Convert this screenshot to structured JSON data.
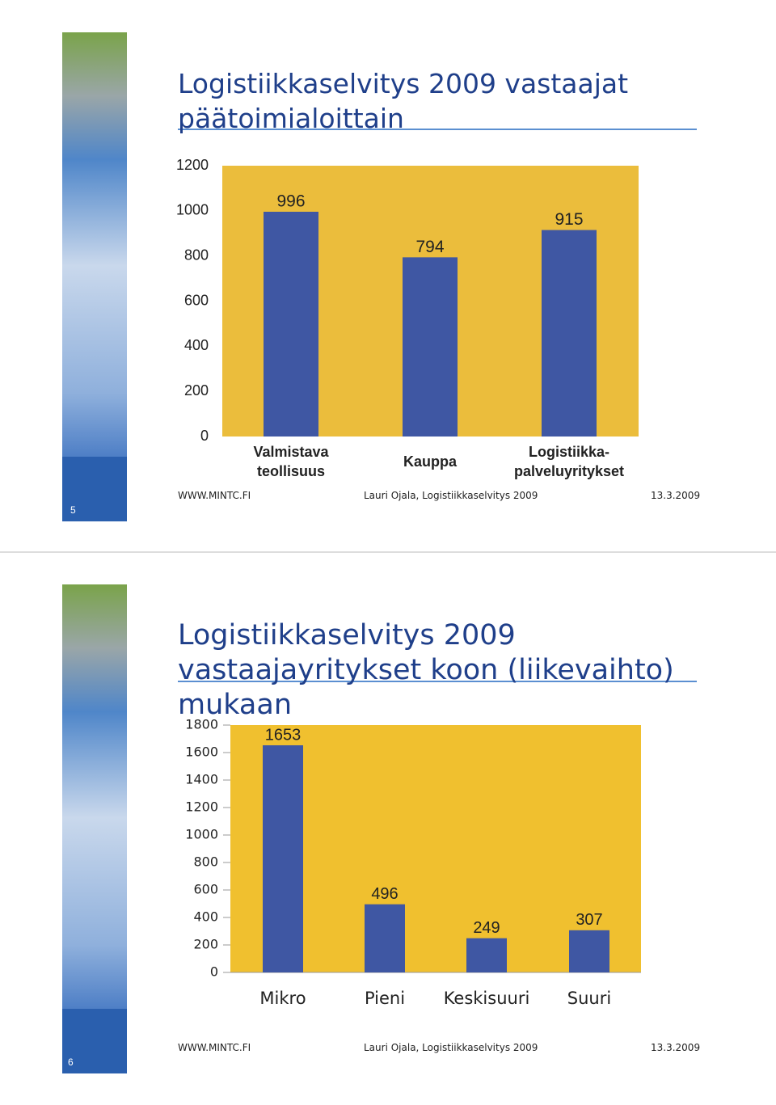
{
  "slides": [
    {
      "number": "5",
      "footer": {
        "left": "WWW.MINTC.FI",
        "center": "Lauri Ojala, Logistiikkaselvitys 2009",
        "right": "13.3.2009"
      }
    },
    {
      "number": "6",
      "footer": {
        "left": "WWW.MINTC.FI",
        "center": "Lauri Ojala, Logistiikkaselvitys 2009",
        "right": "13.3.2009"
      }
    }
  ],
  "chart_data": [
    {
      "type": "bar",
      "title": "Logistiikkaselvitys 2009 vastaajat päätoimialoittain",
      "categories": [
        "Valmistava teollisuus",
        "Kauppa",
        "Logistiikka-palveluyritykset"
      ],
      "values": [
        996,
        794,
        915
      ],
      "color": "#3f57a3",
      "background": "#ebbd3c",
      "ylim": [
        0,
        1200
      ],
      "yticks": [
        0,
        200,
        400,
        600,
        800,
        1000,
        1200
      ],
      "grid": false
    },
    {
      "type": "bar",
      "title": "Logistiikkaselvitys 2009 vastaajayritykset koon (liikevaihto) mukaan",
      "categories": [
        "Mikro",
        "Pieni",
        "Keskisuuri",
        "Suuri"
      ],
      "values": [
        1653,
        496,
        249,
        307
      ],
      "color": "#3f57a3",
      "background": "#f0c02f",
      "ylim": [
        0,
        1800
      ],
      "yticks": [
        0,
        200,
        400,
        600,
        800,
        1000,
        1200,
        1400,
        1600,
        1800
      ],
      "grid": false
    }
  ]
}
